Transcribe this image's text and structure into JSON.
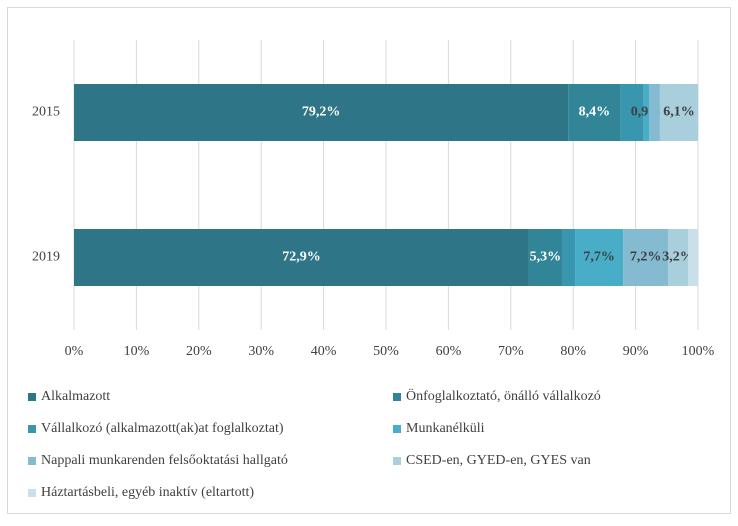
{
  "chart_data": {
    "type": "stacked_barh",
    "categories": [
      "2015",
      "2019"
    ],
    "series": [
      {
        "name": "Alkalmazott",
        "color": "#2e7588",
        "values": [
          79.2,
          72.9
        ],
        "value_labels": [
          "79,2%",
          "72,9%"
        ]
      },
      {
        "name": "Önfoglalkoztató, önálló vállalkozó",
        "color": "#318597",
        "values": [
          8.4,
          5.3
        ],
        "value_labels": [
          "8,4%",
          "5,3%"
        ]
      },
      {
        "name": "Vállalkozó (alkalmazott(ak)at foglalkoztat)",
        "color": "#3896ae",
        "values": [
          3.7,
          2.1
        ],
        "value_labels": [
          null,
          null
        ]
      },
      {
        "name": "Munkanélküli",
        "color": "#48aec8",
        "values": [
          0.9,
          7.7
        ],
        "value_labels": [
          "0,9%",
          "7,7%"
        ]
      },
      {
        "name": "Nappali munkarenden felsőoktatási hallgató",
        "color": "#84bbd0",
        "values": [
          1.7,
          7.2
        ],
        "value_labels": [
          null,
          "7,2%"
        ]
      },
      {
        "name": "CSED-en, GYED-en, GYES van",
        "color": "#a9cfdc",
        "values": [
          6.1,
          3.2
        ],
        "value_labels": [
          "6,1%",
          "3,2%"
        ]
      },
      {
        "name": "Háztartásbeli, egyéb inaktív (eltartott)",
        "color": "#c9e0ea",
        "values": [
          0,
          1.6
        ],
        "value_labels": [
          null,
          null
        ]
      }
    ],
    "xlim": [
      0,
      100
    ],
    "xticks": [
      {
        "value": 0,
        "label": "0%"
      },
      {
        "value": 10,
        "label": "10%"
      },
      {
        "value": 20,
        "label": "20%"
      },
      {
        "value": 30,
        "label": "30%"
      },
      {
        "value": 40,
        "label": "40%"
      },
      {
        "value": 50,
        "label": "50%"
      },
      {
        "value": 60,
        "label": "60%"
      },
      {
        "value": 70,
        "label": "70%"
      },
      {
        "value": 80,
        "label": "80%"
      },
      {
        "value": 90,
        "label": "90%"
      },
      {
        "value": 100,
        "label": "100%"
      }
    ],
    "grid": true,
    "legend": "bottom"
  }
}
